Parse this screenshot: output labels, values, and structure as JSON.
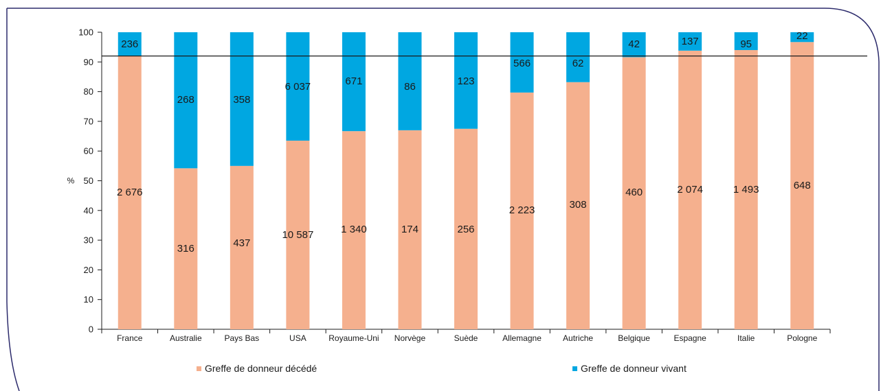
{
  "chart_data": {
    "type": "bar",
    "stacked": true,
    "percent": true,
    "ylabel": "%",
    "xlabel": "",
    "ylim": [
      0,
      100
    ],
    "yticks": [
      0,
      10,
      20,
      30,
      40,
      50,
      60,
      70,
      80,
      90,
      100
    ],
    "reference_line": 92,
    "categories": [
      "France",
      "Australie",
      "Pays Bas",
      "USA",
      "Royaume-Uni",
      "Norvège",
      "Suède",
      "Allemagne",
      "Autriche",
      "Belgique",
      "Espagne",
      "Italie",
      "Pologne"
    ],
    "series": [
      {
        "name": "Greffe de donneur décédé",
        "color": "#f5b08e",
        "percent": [
          92,
          54.2,
          55,
          63.5,
          66.7,
          67,
          67.5,
          79.7,
          83.2,
          91.6,
          93.8,
          94,
          96.7
        ],
        "labels": [
          "2 676",
          "316",
          "437",
          "10 587",
          "1 340",
          "174",
          "256",
          "2 223",
          "308",
          "460",
          "2 074",
          "1 493",
          "648"
        ]
      },
      {
        "name": "Greffe de donneur vivant",
        "color": "#00a7e1",
        "percent": [
          8,
          45.8,
          45,
          36.5,
          33.3,
          33,
          32.5,
          20.3,
          16.8,
          8.4,
          6.2,
          6,
          3.3
        ],
        "labels": [
          "236",
          "268",
          "358",
          "6 037",
          "671",
          "86",
          "123",
          "566",
          "62",
          "42",
          "137",
          "95",
          "22"
        ]
      }
    ],
    "legend_placement": "bottom",
    "grid": false
  },
  "colors": {
    "frame": "#2b2a6b",
    "axis": "#1a1a1a"
  }
}
